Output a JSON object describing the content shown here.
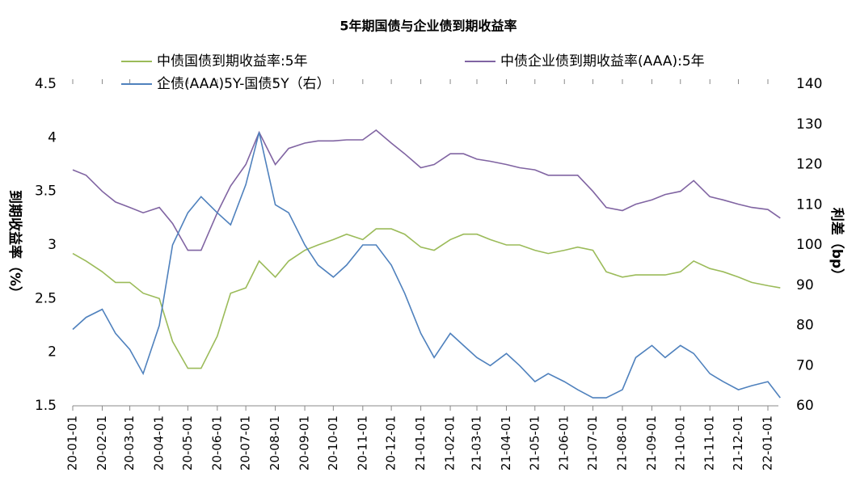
{
  "chart_data": {
    "type": "line",
    "title": "5年期国债与企业债到期收益率",
    "y_label": "到期收益率（%）",
    "y2_label": "利差（bp）",
    "x": [
      "20-01-01",
      "20-01-15",
      "20-02-01",
      "20-02-15",
      "20-03-01",
      "20-03-15",
      "20-04-01",
      "20-04-15",
      "20-05-01",
      "20-05-15",
      "20-06-01",
      "20-06-15",
      "20-07-01",
      "20-07-15",
      "20-08-01",
      "20-08-15",
      "20-09-01",
      "20-09-15",
      "20-10-01",
      "20-10-15",
      "20-11-01",
      "20-11-15",
      "20-12-01",
      "20-12-15",
      "21-01-01",
      "21-01-15",
      "21-02-01",
      "21-02-15",
      "21-03-01",
      "21-03-15",
      "21-04-01",
      "21-04-15",
      "21-05-01",
      "21-05-15",
      "21-06-01",
      "21-06-15",
      "21-07-01",
      "21-07-15",
      "21-08-01",
      "21-08-15",
      "21-09-01",
      "21-09-15",
      "21-10-01",
      "21-10-15",
      "21-11-01",
      "21-11-15",
      "21-12-01",
      "21-12-15",
      "22-01-01",
      "22-01-14"
    ],
    "xticks": [
      "20-01-01",
      "20-02-01",
      "20-03-01",
      "20-04-01",
      "20-05-01",
      "20-06-01",
      "20-07-01",
      "20-08-01",
      "20-09-01",
      "20-10-01",
      "20-11-01",
      "20-12-01",
      "21-01-01",
      "21-02-01",
      "21-03-01",
      "21-04-01",
      "21-05-01",
      "21-06-01",
      "21-07-01",
      "21-08-01",
      "21-09-01",
      "21-10-01",
      "21-11-01",
      "21-12-01",
      "22-01-01"
    ],
    "series": [
      {
        "name": "中债国债到期收益率:5年",
        "color": "#9bbb59",
        "values": [
          2.92,
          2.85,
          2.75,
          2.65,
          2.65,
          2.55,
          2.5,
          2.1,
          1.85,
          1.85,
          2.15,
          2.55,
          2.6,
          2.85,
          2.7,
          2.85,
          2.95,
          3.0,
          3.05,
          3.1,
          3.05,
          3.15,
          3.15,
          3.1,
          2.98,
          2.95,
          3.05,
          3.1,
          3.1,
          3.05,
          3.0,
          3.0,
          2.95,
          2.92,
          2.95,
          2.98,
          2.95,
          2.75,
          2.7,
          2.72,
          2.72,
          2.72,
          2.75,
          2.85,
          2.78,
          2.75,
          2.7,
          2.65,
          2.62,
          2.6
        ]
      },
      {
        "name": "中债企业债到期收益率(AAA):5年",
        "color": "#8064a2",
        "values": [
          3.7,
          3.65,
          3.5,
          3.4,
          3.35,
          3.3,
          3.35,
          3.2,
          2.95,
          2.95,
          3.3,
          3.55,
          3.75,
          4.05,
          3.75,
          3.9,
          3.95,
          3.97,
          3.97,
          3.98,
          3.98,
          4.07,
          3.95,
          3.85,
          3.72,
          3.75,
          3.85,
          3.85,
          3.8,
          3.78,
          3.75,
          3.72,
          3.7,
          3.65,
          3.65,
          3.65,
          3.5,
          3.35,
          3.32,
          3.38,
          3.42,
          3.47,
          3.5,
          3.6,
          3.45,
          3.42,
          3.38,
          3.35,
          3.33,
          3.25
        ]
      },
      {
        "name": "企债(AAA)5Y-国债5Y（右）",
        "color": "#4f81bd",
        "axis": "y2",
        "values": [
          79,
          82,
          84,
          78,
          74,
          68,
          80,
          100,
          108,
          112,
          108,
          105,
          115,
          128,
          110,
          108,
          100,
          95,
          92,
          95,
          100,
          100,
          95,
          88,
          78,
          72,
          78,
          75,
          72,
          70,
          73,
          70,
          66,
          68,
          66,
          64,
          62,
          62,
          64,
          72,
          75,
          72,
          75,
          73,
          68,
          66,
          64,
          65,
          66,
          62
        ]
      }
    ],
    "ylim": [
      1.5,
      4.5
    ],
    "yticks": [
      1.5,
      2,
      2.5,
      3,
      3.5,
      4,
      4.5
    ],
    "y2lim": [
      60,
      140
    ],
    "y2ticks": [
      60,
      70,
      80,
      90,
      100,
      110,
      120,
      130,
      140
    ],
    "legend": "top",
    "grid": false
  }
}
